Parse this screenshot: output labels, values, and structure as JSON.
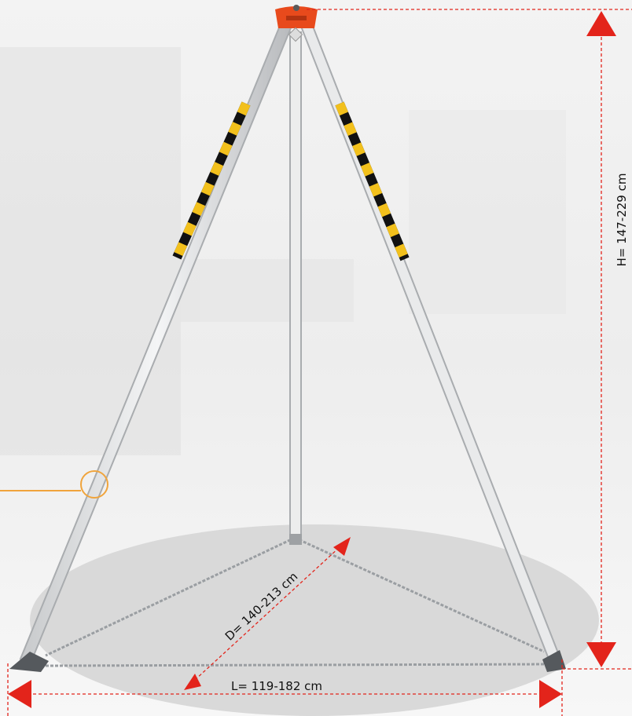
{
  "labels": {
    "height": "H= 147-229 cm",
    "diameter": "D= 140-213 cm",
    "length": "L= 119-182 cm"
  }
}
